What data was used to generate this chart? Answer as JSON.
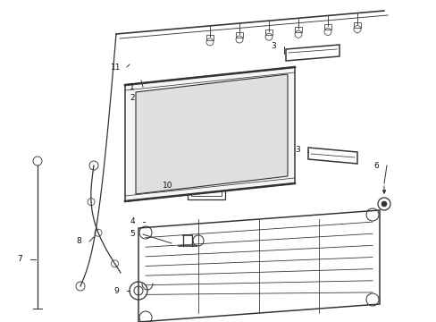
{
  "bg_color": "#ffffff",
  "line_color": "#333333",
  "text_color": "#111111",
  "fig_width": 4.89,
  "fig_height": 3.6,
  "dpi": 100
}
